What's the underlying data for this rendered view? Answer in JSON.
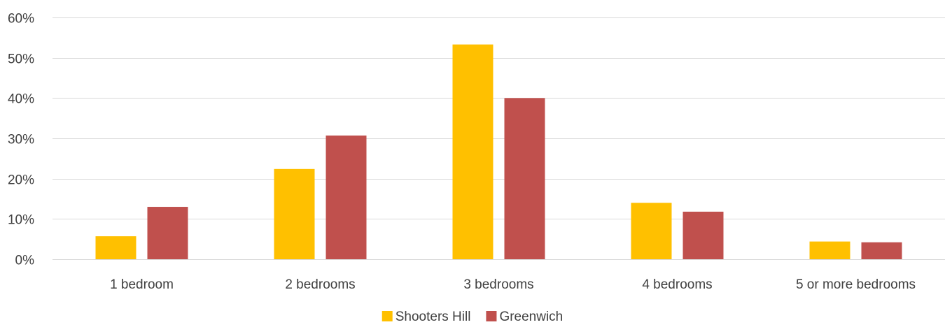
{
  "chart_data": {
    "type": "bar",
    "title": "",
    "xlabel": "",
    "ylabel": "",
    "categories": [
      "1 bedroom",
      "2 bedrooms",
      "3 bedrooms",
      "4 bedrooms",
      "5 or more bedrooms"
    ],
    "series": [
      {
        "name": "Shooters Hill",
        "color": "#ffc000",
        "values": [
          5.7,
          22.4,
          53.3,
          14.0,
          4.4
        ]
      },
      {
        "name": "Greenwich",
        "color": "#c0504d",
        "values": [
          13.0,
          30.7,
          40.0,
          11.8,
          4.2
        ]
      }
    ],
    "ylim": [
      0,
      60
    ],
    "yticks": [
      0,
      10,
      20,
      30,
      40,
      50,
      60
    ],
    "ytick_labels": [
      "0%",
      "10%",
      "20%",
      "30%",
      "40%",
      "50%",
      "60%"
    ],
    "grid": true,
    "legend_position": "bottom-center",
    "gridline_color": "#d9d9d9",
    "text_color": "#404040"
  }
}
